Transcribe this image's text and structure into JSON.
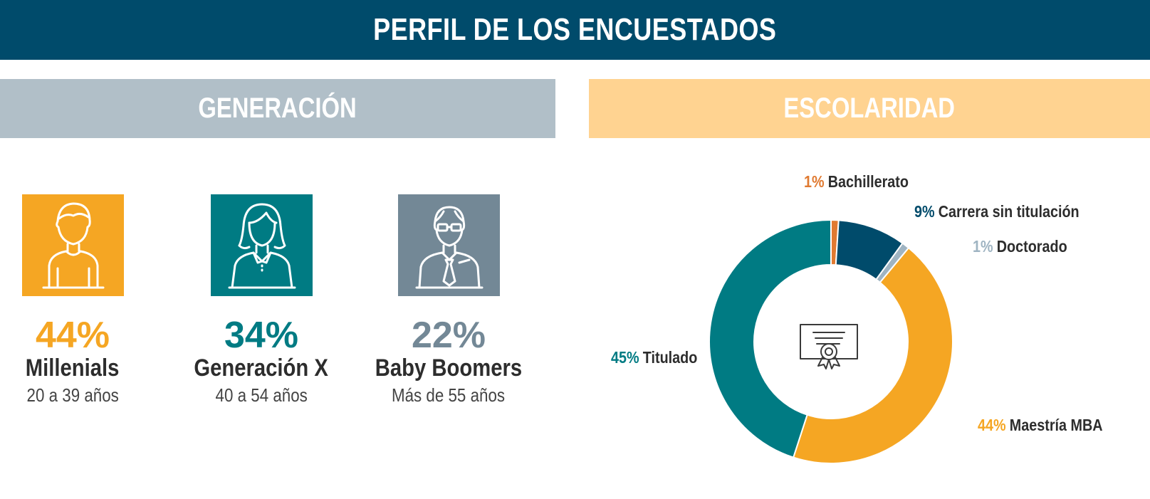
{
  "title": "PERFIL DE LOS ENCUESTADOS",
  "generation": {
    "heading": "GENERACIÓN",
    "groups": [
      {
        "percent": "44%",
        "name": "Millenials",
        "range": "20 a 39 años",
        "color": "#f5a623",
        "icon": "young-man-icon"
      },
      {
        "percent": "34%",
        "name": "Generación X",
        "range": "40 a 54 años",
        "color": "#007b83",
        "icon": "woman-icon"
      },
      {
        "percent": "22%",
        "name": "Baby Boomers",
        "range": "Más de 55 años",
        "color": "#738896",
        "icon": "older-man-with-glasses-icon"
      }
    ]
  },
  "education": {
    "heading": "ESCOLARIDAD",
    "center_icon": "diploma-certificate-icon"
  },
  "chart_data": {
    "type": "pie",
    "categories": [
      "Bachillerato",
      "Carrera sin titulación",
      "Doctorado",
      "Maestría MBA",
      "Titulado"
    ],
    "values": [
      1,
      9,
      1,
      44,
      45
    ],
    "labels": [
      "1%",
      "9%",
      "1%",
      "44%",
      "45%"
    ],
    "colors": [
      "#e07a31",
      "#004b6b",
      "#9fb4c2",
      "#f5a623",
      "#007b83"
    ],
    "donut": true
  }
}
